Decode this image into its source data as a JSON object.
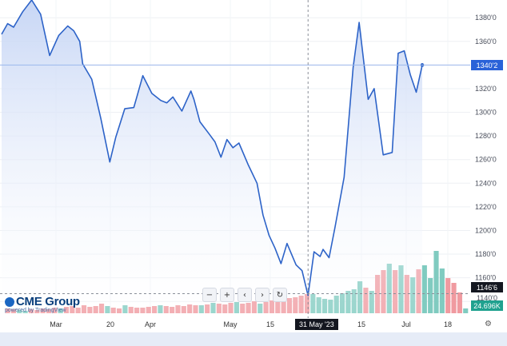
{
  "chart_data": {
    "type": "line",
    "x_tick_labels": [
      "Mar",
      "20",
      "Apr",
      "May",
      "15",
      "31 May '23",
      "15",
      "Jul",
      "18"
    ],
    "y_ticks": [
      "1140'0",
      "1160'0",
      "1180'0",
      "1200'0",
      "1220'0",
      "1240'0",
      "1260'0",
      "1280'0",
      "1300'0",
      "1320'0",
      "1340'0",
      "1360'0",
      "1380'0"
    ],
    "ylim": [
      1130,
      1395
    ],
    "series": [
      {
        "x": [
          0,
          2,
          4,
          7,
          10,
          13,
          16,
          19,
          22,
          24,
          26,
          27,
          30,
          33,
          36,
          38,
          41,
          44,
          45,
          47,
          50,
          53,
          55,
          57,
          60,
          63,
          64,
          66,
          69,
          71,
          73,
          75,
          77,
          79,
          82,
          85,
          87,
          89,
          91,
          93,
          95,
          98,
          100,
          102,
          104,
          106,
          107,
          109,
          111,
          114,
          117,
          119,
          122,
          124,
          127,
          130,
          132,
          134,
          136,
          138,
          140
        ],
        "y": [
          1366,
          1375,
          1372,
          1385,
          1395,
          1383,
          1348,
          1365,
          1373,
          1369,
          1360,
          1341,
          1328,
          1295,
          1258,
          1279,
          1303,
          1304,
          1313,
          1331,
          1316,
          1310,
          1308,
          1313,
          1301,
          1318,
          1311,
          1292,
          1282,
          1275,
          1262,
          1277,
          1270,
          1274,
          1256,
          1240,
          1213,
          1196,
          1185,
          1172,
          1189,
          1171,
          1166,
          1145,
          1182,
          1178,
          1184,
          1177,
          1203,
          1245,
          1338,
          1376,
          1311,
          1320,
          1264,
          1266,
          1350,
          1352,
          1332,
          1317,
          1340
        ]
      }
    ],
    "volume": [
      {
        "v": 6,
        "c": "r"
      },
      {
        "v": 5,
        "c": "r"
      },
      {
        "v": 4,
        "c": "g"
      },
      {
        "v": 3,
        "c": "g"
      },
      {
        "v": 5,
        "c": "r"
      },
      {
        "v": 4,
        "c": "r"
      },
      {
        "v": 6,
        "c": "r"
      },
      {
        "v": 5,
        "c": "r"
      },
      {
        "v": 7,
        "c": "r"
      },
      {
        "v": 6,
        "c": "g"
      },
      {
        "v": 8,
        "c": "r"
      },
      {
        "v": 9,
        "c": "r"
      },
      {
        "v": 7,
        "c": "r"
      },
      {
        "v": 10,
        "c": "r"
      },
      {
        "v": 8,
        "c": "r"
      },
      {
        "v": 9,
        "c": "r"
      },
      {
        "v": 12,
        "c": "r"
      },
      {
        "v": 9,
        "c": "g"
      },
      {
        "v": 7,
        "c": "r"
      },
      {
        "v": 6,
        "c": "r"
      },
      {
        "v": 10,
        "c": "g"
      },
      {
        "v": 8,
        "c": "r"
      },
      {
        "v": 7,
        "c": "r"
      },
      {
        "v": 7,
        "c": "r"
      },
      {
        "v": 8,
        "c": "r"
      },
      {
        "v": 9,
        "c": "r"
      },
      {
        "v": 10,
        "c": "g"
      },
      {
        "v": 9,
        "c": "r"
      },
      {
        "v": 8,
        "c": "r"
      },
      {
        "v": 10,
        "c": "r"
      },
      {
        "v": 9,
        "c": "r"
      },
      {
        "v": 11,
        "c": "r"
      },
      {
        "v": 10,
        "c": "r"
      },
      {
        "v": 10,
        "c": "g"
      },
      {
        "v": 11,
        "c": "r"
      },
      {
        "v": 13,
        "c": "g"
      },
      {
        "v": 12,
        "c": "r"
      },
      {
        "v": 11,
        "c": "r"
      },
      {
        "v": 13,
        "c": "r"
      },
      {
        "v": 14,
        "c": "g"
      },
      {
        "v": 12,
        "c": "r"
      },
      {
        "v": 13,
        "c": "r"
      },
      {
        "v": 15,
        "c": "r"
      },
      {
        "v": 12,
        "c": "g"
      },
      {
        "v": 14,
        "c": "r"
      },
      {
        "v": 16,
        "c": "r"
      },
      {
        "v": 17,
        "c": "r"
      },
      {
        "v": 18,
        "c": "r"
      },
      {
        "v": 19,
        "c": "r"
      },
      {
        "v": 20,
        "c": "r"
      },
      {
        "v": 22,
        "c": "r"
      },
      {
        "v": 24,
        "c": "r"
      },
      {
        "v": 24,
        "c": "g"
      },
      {
        "v": 20,
        "c": "g"
      },
      {
        "v": 18,
        "c": "g"
      },
      {
        "v": 17,
        "c": "g"
      },
      {
        "v": 22,
        "c": "g"
      },
      {
        "v": 25,
        "c": "g"
      },
      {
        "v": 28,
        "c": "g"
      },
      {
        "v": 30,
        "c": "g"
      },
      {
        "v": 40,
        "c": "g"
      },
      {
        "v": 32,
        "c": "r"
      },
      {
        "v": 28,
        "c": "g"
      },
      {
        "v": 48,
        "c": "r"
      },
      {
        "v": 54,
        "c": "r"
      },
      {
        "v": 62,
        "c": "g"
      },
      {
        "v": 54,
        "c": "r"
      },
      {
        "v": 60,
        "c": "g"
      },
      {
        "v": 48,
        "c": "r"
      },
      {
        "v": 45,
        "c": "g"
      },
      {
        "v": 55,
        "c": "r"
      },
      {
        "v": 60,
        "c": "g"
      },
      {
        "v": 44,
        "c": "g"
      },
      {
        "v": 78,
        "c": "g"
      },
      {
        "v": 56,
        "c": "g"
      },
      {
        "v": 44,
        "c": "r"
      },
      {
        "v": 38,
        "c": "r"
      },
      {
        "v": 26,
        "c": "r"
      },
      {
        "v": 6,
        "c": "g"
      }
    ],
    "last_price": "1340'2",
    "crosshair_price": "1146'6",
    "crosshair_price_value": 1146.6,
    "lower_price": "1140'0",
    "volume_readout": "24.696K",
    "grid": true,
    "colors": {
      "line": "#2d63c8",
      "fill_top": "#c7d6f5",
      "fill_bottom": "#ffffff",
      "vol_up": "#80cbc0",
      "vol_down": "#f09aa0",
      "price_tag": "#2a62d8",
      "vol_tag": "#1fa18f",
      "crosshair_tag": "#141720"
    }
  },
  "branding": {
    "logo_main": "CME Group",
    "logo_sub": "powered by TradingView"
  },
  "toolbar": {
    "minus_label": "−",
    "plus_label": "+",
    "left_label": "‹",
    "right_label": "›",
    "reset_label": "↻"
  },
  "settings_icon": "⚙"
}
